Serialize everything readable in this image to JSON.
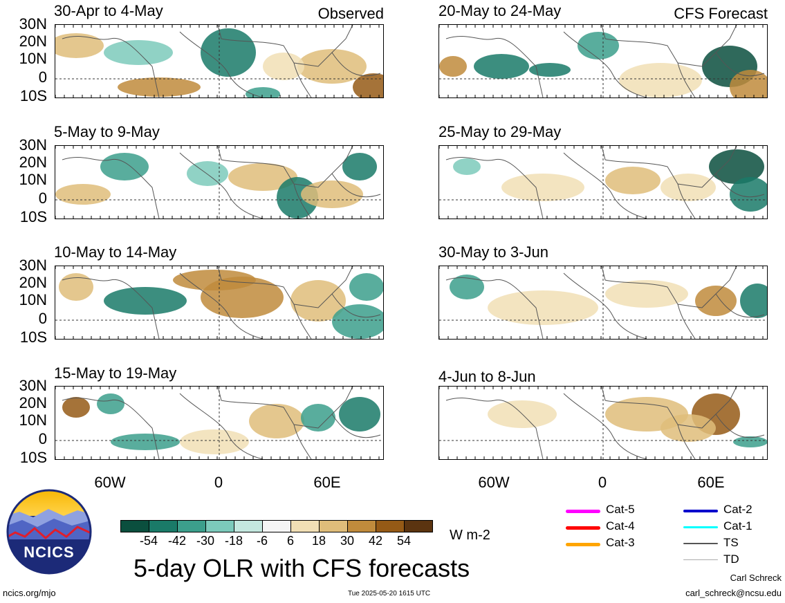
{
  "left_column": {
    "header_label": "Observed",
    "panels": [
      {
        "title": "30-Apr to 4-May"
      },
      {
        "title": "5-May to 9-May"
      },
      {
        "title": "10-May to 14-May"
      },
      {
        "title": "15-May to 19-May"
      }
    ]
  },
  "right_column": {
    "header_label": "CFS Forecast",
    "panels": [
      {
        "title": "20-May to 24-May"
      },
      {
        "title": "25-May to 29-May"
      },
      {
        "title": "30-May to 3-Jun"
      },
      {
        "title": "4-Jun to 8-Jun"
      }
    ]
  },
  "lat_labels": [
    "30N",
    "20N",
    "10N",
    "0",
    "10S"
  ],
  "lon_labels": [
    "60W",
    "0",
    "60E"
  ],
  "colorbar": {
    "ticks": [
      "-54",
      "-42",
      "-30",
      "-18",
      "-6",
      "6",
      "18",
      "30",
      "42",
      "54"
    ],
    "unit": "W m-2",
    "colors": [
      "#0b4f3e",
      "#1a7a68",
      "#3c9f8c",
      "#7ccabb",
      "#c4e8df",
      "#f5f5f5",
      "#f1dfb5",
      "#dfbd7a",
      "#c08b3c",
      "#955a16",
      "#5b3410"
    ]
  },
  "storm_legend": [
    {
      "label": "Cat-5",
      "color": "#ff00ff"
    },
    {
      "label": "Cat-4",
      "color": "#ff0000"
    },
    {
      "label": "Cat-3",
      "color": "#ffa500"
    },
    {
      "label": "Cat-2",
      "color": "#0000cc"
    },
    {
      "label": "Cat-1",
      "color": "#00ffff"
    },
    {
      "label": "TS",
      "color": "#555555"
    },
    {
      "label": "TD",
      "color": "#aaaaaa"
    }
  ],
  "main_title": "5-day OLR with CFS forecasts",
  "logo_text": "NCICS",
  "footer": {
    "url": "ncics.org/mjo",
    "timestamp": "Tue 2025-05-20 1615 UTC",
    "author": "Carl Schreck",
    "email": "carl_schreck@ncsu.edu"
  }
}
